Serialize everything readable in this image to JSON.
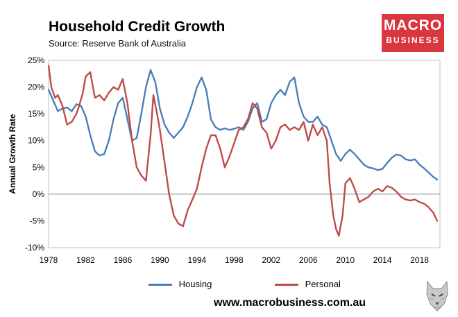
{
  "header": {
    "title": "Household Credit Growth",
    "subtitle": "Source: Reserve Bank of Australia"
  },
  "logo": {
    "line1": "MACRO",
    "line2": "BUSINESS"
  },
  "footer": {
    "url": "www.macrobusiness.com.au"
  },
  "icons": {
    "watermark": "wolf-icon"
  },
  "chart_data": {
    "type": "line",
    "ylabel": "Annual Growth Rate",
    "xlim": [
      1978,
      2020.2
    ],
    "ylim": [
      -10,
      25
    ],
    "x_ticks": [
      1978,
      1982,
      1986,
      1990,
      1994,
      1998,
      2002,
      2006,
      2010,
      2014,
      2018
    ],
    "y_ticks": [
      {
        "value": 25,
        "label": "25%"
      },
      {
        "value": 20,
        "label": "20%"
      },
      {
        "value": 15,
        "label": "15%"
      },
      {
        "value": 10,
        "label": "10%"
      },
      {
        "value": 5,
        "label": "5%"
      },
      {
        "value": 0,
        "label": "0%"
      },
      {
        "value": -5,
        "label": "-5%"
      },
      {
        "value": -10,
        "label": "-10%"
      }
    ],
    "grid": false,
    "legend_position": "bottom",
    "series": [
      {
        "name": "Housing",
        "color": "#4a7ebb",
        "points": [
          [
            1978.0,
            19.5
          ],
          [
            1978.5,
            17.5
          ],
          [
            1979.0,
            15.5
          ],
          [
            1979.5,
            16.0
          ],
          [
            1980.0,
            16.2
          ],
          [
            1980.5,
            15.5
          ],
          [
            1981.0,
            16.8
          ],
          [
            1981.5,
            16.5
          ],
          [
            1982.0,
            14.5
          ],
          [
            1982.5,
            11.0
          ],
          [
            1983.0,
            8.0
          ],
          [
            1983.5,
            7.2
          ],
          [
            1984.0,
            7.5
          ],
          [
            1984.5,
            10.0
          ],
          [
            1985.0,
            14.0
          ],
          [
            1985.5,
            17.0
          ],
          [
            1986.0,
            18.0
          ],
          [
            1986.5,
            14.0
          ],
          [
            1987.0,
            10.0
          ],
          [
            1987.5,
            10.5
          ],
          [
            1988.0,
            15.0
          ],
          [
            1988.5,
            20.0
          ],
          [
            1989.0,
            23.2
          ],
          [
            1989.5,
            21.0
          ],
          [
            1990.0,
            16.0
          ],
          [
            1990.5,
            13.0
          ],
          [
            1991.0,
            11.5
          ],
          [
            1991.5,
            10.5
          ],
          [
            1992.0,
            11.5
          ],
          [
            1992.5,
            12.5
          ],
          [
            1993.0,
            14.5
          ],
          [
            1993.5,
            17.0
          ],
          [
            1994.0,
            20.0
          ],
          [
            1994.5,
            21.8
          ],
          [
            1995.0,
            19.5
          ],
          [
            1995.5,
            14.0
          ],
          [
            1996.0,
            12.5
          ],
          [
            1996.5,
            12.0
          ],
          [
            1997.0,
            12.3
          ],
          [
            1997.5,
            12.0
          ],
          [
            1998.0,
            12.2
          ],
          [
            1998.5,
            12.5
          ],
          [
            1999.0,
            12.0
          ],
          [
            1999.5,
            13.5
          ],
          [
            2000.0,
            16.0
          ],
          [
            2000.5,
            17.0
          ],
          [
            2001.0,
            13.5
          ],
          [
            2001.5,
            14.0
          ],
          [
            2002.0,
            17.0
          ],
          [
            2002.5,
            18.5
          ],
          [
            2003.0,
            19.5
          ],
          [
            2003.5,
            18.5
          ],
          [
            2004.0,
            21.0
          ],
          [
            2004.5,
            21.8
          ],
          [
            2005.0,
            17.0
          ],
          [
            2005.5,
            14.5
          ],
          [
            2006.0,
            13.5
          ],
          [
            2006.5,
            13.5
          ],
          [
            2007.0,
            14.5
          ],
          [
            2007.5,
            13.0
          ],
          [
            2008.0,
            12.5
          ],
          [
            2008.5,
            10.0
          ],
          [
            2009.0,
            7.5
          ],
          [
            2009.5,
            6.2
          ],
          [
            2010.0,
            7.5
          ],
          [
            2010.5,
            8.3
          ],
          [
            2011.0,
            7.5
          ],
          [
            2011.5,
            6.5
          ],
          [
            2012.0,
            5.5
          ],
          [
            2012.5,
            5.0
          ],
          [
            2013.0,
            4.8
          ],
          [
            2013.5,
            4.5
          ],
          [
            2014.0,
            4.7
          ],
          [
            2014.5,
            5.8
          ],
          [
            2015.0,
            6.8
          ],
          [
            2015.5,
            7.4
          ],
          [
            2016.0,
            7.2
          ],
          [
            2016.5,
            6.5
          ],
          [
            2017.0,
            6.3
          ],
          [
            2017.5,
            6.5
          ],
          [
            2018.0,
            5.5
          ],
          [
            2018.5,
            4.8
          ],
          [
            2019.0,
            4.0
          ],
          [
            2019.5,
            3.2
          ],
          [
            2019.9,
            2.7
          ]
        ]
      },
      {
        "name": "Personal",
        "color": "#be4b48",
        "points": [
          [
            1978.0,
            24.0
          ],
          [
            1978.3,
            20.0
          ],
          [
            1978.7,
            18.0
          ],
          [
            1979.0,
            18.5
          ],
          [
            1979.5,
            16.5
          ],
          [
            1980.0,
            13.0
          ],
          [
            1980.5,
            13.5
          ],
          [
            1981.0,
            15.0
          ],
          [
            1981.3,
            16.5
          ],
          [
            1981.7,
            19.0
          ],
          [
            1982.0,
            22.0
          ],
          [
            1982.5,
            22.8
          ],
          [
            1983.0,
            18.0
          ],
          [
            1983.5,
            18.5
          ],
          [
            1984.0,
            17.5
          ],
          [
            1984.5,
            19.0
          ],
          [
            1985.0,
            20.0
          ],
          [
            1985.5,
            19.5
          ],
          [
            1986.0,
            21.5
          ],
          [
            1986.5,
            17.0
          ],
          [
            1987.0,
            10.0
          ],
          [
            1987.5,
            5.0
          ],
          [
            1988.0,
            3.5
          ],
          [
            1988.5,
            2.5
          ],
          [
            1989.0,
            11.0
          ],
          [
            1989.3,
            18.5
          ],
          [
            1989.7,
            15.0
          ],
          [
            1990.0,
            12.0
          ],
          [
            1990.5,
            6.0
          ],
          [
            1991.0,
            0.0
          ],
          [
            1991.5,
            -4.0
          ],
          [
            1992.0,
            -5.5
          ],
          [
            1992.5,
            -6.0
          ],
          [
            1993.0,
            -3.0
          ],
          [
            1993.5,
            -1.0
          ],
          [
            1994.0,
            1.0
          ],
          [
            1994.5,
            5.0
          ],
          [
            1995.0,
            8.5
          ],
          [
            1995.5,
            11.0
          ],
          [
            1996.0,
            11.0
          ],
          [
            1996.5,
            8.5
          ],
          [
            1997.0,
            5.0
          ],
          [
            1997.5,
            7.0
          ],
          [
            1998.0,
            9.5
          ],
          [
            1998.5,
            12.0
          ],
          [
            1999.0,
            12.5
          ],
          [
            1999.5,
            14.0
          ],
          [
            2000.0,
            17.0
          ],
          [
            2000.5,
            16.0
          ],
          [
            2001.0,
            12.5
          ],
          [
            2001.5,
            11.5
          ],
          [
            2002.0,
            8.5
          ],
          [
            2002.5,
            10.0
          ],
          [
            2003.0,
            12.5
          ],
          [
            2003.5,
            13.0
          ],
          [
            2004.0,
            12.0
          ],
          [
            2004.5,
            12.5
          ],
          [
            2005.0,
            12.0
          ],
          [
            2005.5,
            13.5
          ],
          [
            2006.0,
            10.0
          ],
          [
            2006.5,
            13.0
          ],
          [
            2007.0,
            11.0
          ],
          [
            2007.5,
            12.5
          ],
          [
            2008.0,
            10.0
          ],
          [
            2008.3,
            2.0
          ],
          [
            2008.7,
            -4.0
          ],
          [
            2009.0,
            -6.5
          ],
          [
            2009.3,
            -7.8
          ],
          [
            2009.7,
            -4.0
          ],
          [
            2010.0,
            2.0
          ],
          [
            2010.5,
            3.0
          ],
          [
            2011.0,
            1.0
          ],
          [
            2011.5,
            -1.5
          ],
          [
            2012.0,
            -1.0
          ],
          [
            2012.5,
            -0.5
          ],
          [
            2013.0,
            0.5
          ],
          [
            2013.5,
            1.0
          ],
          [
            2014.0,
            0.5
          ],
          [
            2014.5,
            1.5
          ],
          [
            2015.0,
            1.2
          ],
          [
            2015.5,
            0.5
          ],
          [
            2016.0,
            -0.5
          ],
          [
            2016.5,
            -1.0
          ],
          [
            2017.0,
            -1.2
          ],
          [
            2017.5,
            -1.0
          ],
          [
            2018.0,
            -1.5
          ],
          [
            2018.5,
            -1.8
          ],
          [
            2019.0,
            -2.5
          ],
          [
            2019.5,
            -3.5
          ],
          [
            2019.9,
            -5.0
          ]
        ]
      }
    ]
  }
}
